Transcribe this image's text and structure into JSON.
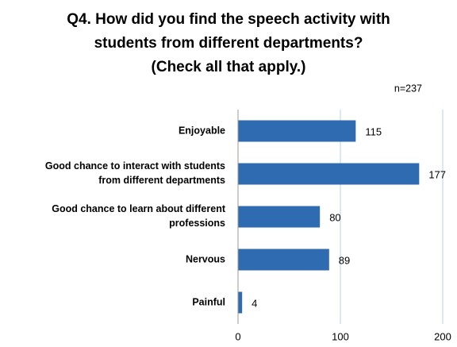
{
  "chart_data": {
    "type": "bar",
    "orientation": "horizontal",
    "title": "Q4.  How did you find the speech activity with\nstudents from different departments?\n(Check all that apply.)",
    "subtitle": "n=237",
    "categories": [
      "Enjoyable",
      "Good chance to interact with students\nfrom different departments",
      "Good chance to learn about different\nprofessions",
      "Nervous",
      "Painful"
    ],
    "values": [
      115,
      177,
      80,
      89,
      4
    ],
    "color": "#2e6bb0",
    "xlim": [
      0,
      200
    ],
    "xticks": [
      0,
      100,
      200
    ],
    "grid": true
  }
}
